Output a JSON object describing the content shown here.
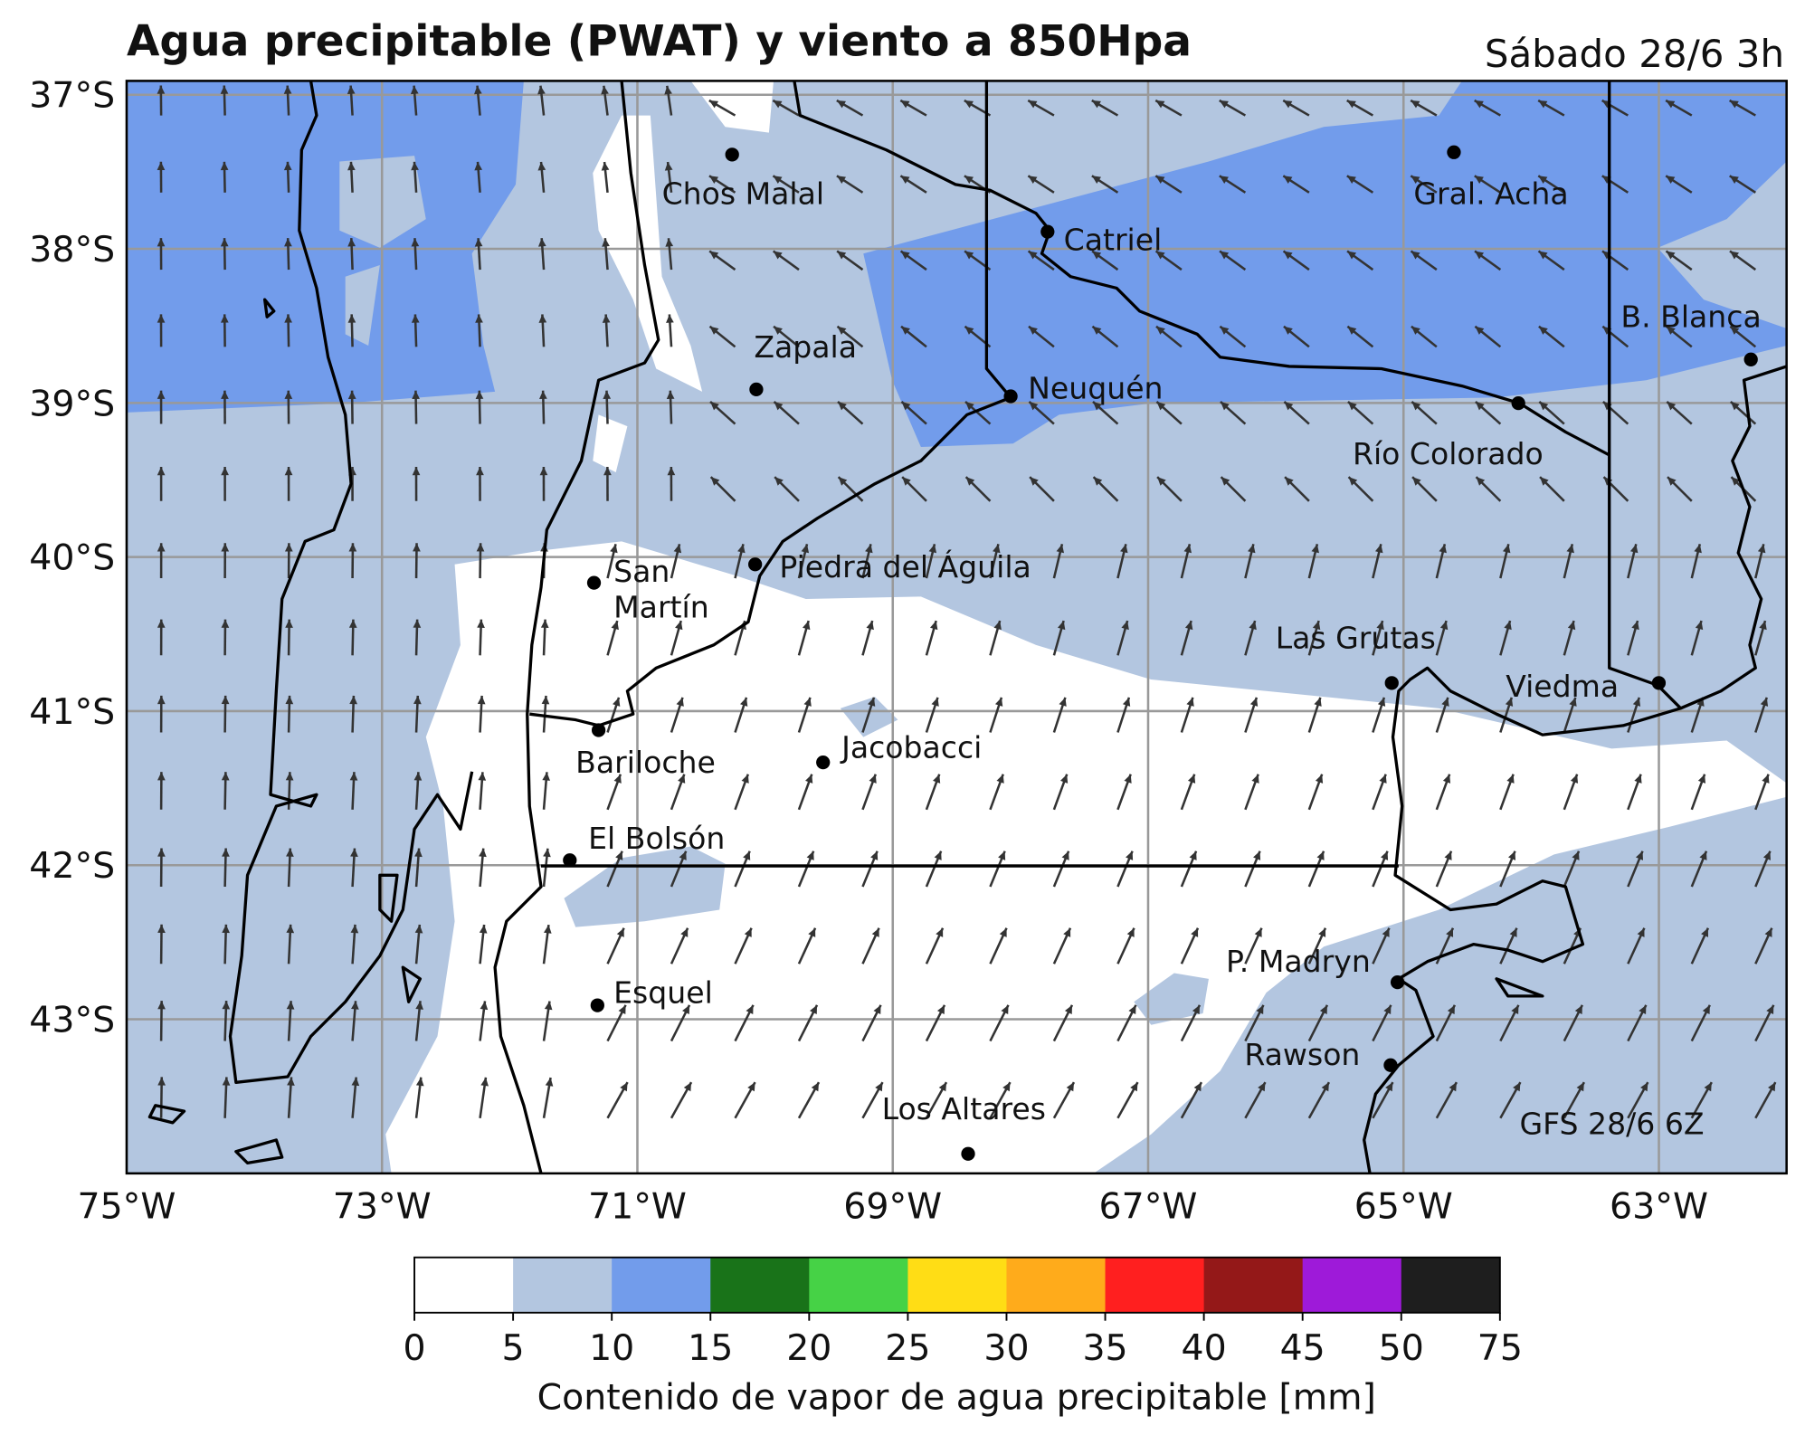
{
  "title": "Agua precipitable (PWAT) y viento a 850Hpa",
  "subtitle": "Sábado 28/6 3h",
  "map": {
    "xlim": [
      -75,
      -62
    ],
    "ylim": [
      -44,
      -36.91
    ],
    "xticks": [
      {
        "value": -75,
        "label": "75°W"
      },
      {
        "value": -73,
        "label": "73°W"
      },
      {
        "value": -71,
        "label": "71°W"
      },
      {
        "value": -69,
        "label": "69°W"
      },
      {
        "value": -67,
        "label": "67°W"
      },
      {
        "value": -65,
        "label": "65°W"
      },
      {
        "value": -63,
        "label": "63°W"
      }
    ],
    "yticks": [
      {
        "value": -37,
        "label": "37°S"
      },
      {
        "value": -38,
        "label": "38°S"
      },
      {
        "value": -39,
        "label": "39°S"
      },
      {
        "value": -40,
        "label": "40°S"
      },
      {
        "value": -41,
        "label": "41°S"
      },
      {
        "value": -42,
        "label": "42°S"
      },
      {
        "value": -43,
        "label": "43°S"
      }
    ],
    "cities": [
      {
        "label": "Chos Malal"
      },
      {
        "label": "Gral. Acha"
      },
      {
        "label": "Catriel"
      },
      {
        "label": "Zapala"
      },
      {
        "label": "Neuquén"
      },
      {
        "label": "B. Blanca"
      },
      {
        "label": "Río Colorado"
      },
      {
        "label": [
          "San",
          "Martín"
        ]
      },
      {
        "label": "Piedra del Águila"
      },
      {
        "label": "Las Grutas"
      },
      {
        "label": "Viedma"
      },
      {
        "label": "Bariloche"
      },
      {
        "label": "Jacobacci"
      },
      {
        "label": "El Bolsón"
      },
      {
        "label": "Esquel"
      },
      {
        "label": "P. Madryn"
      },
      {
        "label": "Rawson"
      },
      {
        "label": "Los Altares"
      }
    ],
    "annotation": "GFS 28/6 6Z"
  },
  "colorbar": {
    "ticks": [
      0,
      5,
      10,
      15,
      20,
      25,
      30,
      35,
      40,
      45,
      50,
      75
    ],
    "colors": [
      "#ffffff",
      "#b3c6e0",
      "#729ceb",
      "#197319",
      "#46d246",
      "#ffdd15",
      "#ffab1b",
      "#ff1f1f",
      "#941818",
      "#9e1ad9",
      "#1e1e1e"
    ],
    "label": "Contenido de vapor de agua precipitable [mm]"
  }
}
